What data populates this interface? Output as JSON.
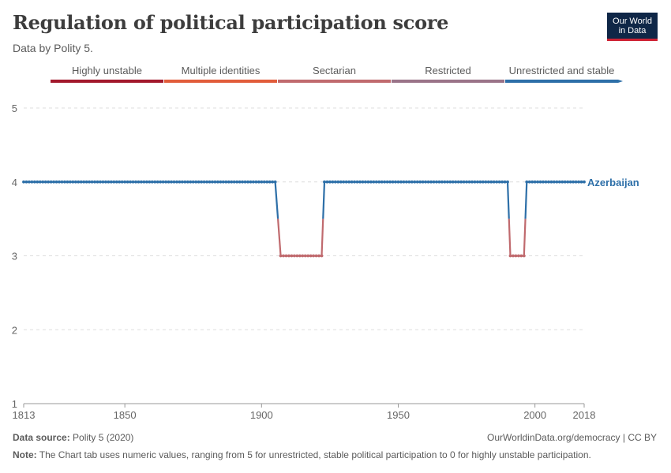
{
  "header": {
    "title": "Regulation of political participation score",
    "subtitle": "Data by Polity 5."
  },
  "logo": {
    "line1": "Our World",
    "line2": "in Data"
  },
  "footer": {
    "source_label": "Data source:",
    "source_text": "Polity 5 (2020)",
    "url_text": "OurWorldinData.org/democracy | CC BY",
    "note_label": "Note:",
    "note_text": "The Chart tab uses numeric values, ranging from 5 for unrestricted, stable political participation to 0 for highly unstable participation."
  },
  "colors": {
    "highly_unstable": "#a2182c",
    "multiple_identities": "#e15c3a",
    "sectarian": "#c06a6e",
    "restricted": "#9a7388",
    "unrestricted_and_stable": "#2d6fa8",
    "series": "#2d6fa8",
    "grid": "#dddddd"
  },
  "chart_data": {
    "type": "line",
    "title": "Regulation of political participation score",
    "subtitle": "Data by Polity 5.",
    "xlabel": "",
    "ylabel": "",
    "xlim": [
      1813,
      2018
    ],
    "ylim": [
      1,
      5
    ],
    "x_ticks": [
      1813,
      1850,
      1900,
      1950,
      2000,
      2018
    ],
    "y_ticks": [
      1,
      2,
      3,
      4,
      5
    ],
    "grid": "horizontal dashed",
    "legend": {
      "placement": "top",
      "entries": [
        "Highly unstable",
        "Multiple identities",
        "Sectarian",
        "Restricted",
        "Unrestricted and stable"
      ]
    },
    "series": [
      {
        "name": "Azerbaijan",
        "color": "#2d6fa8",
        "segments": [
          {
            "x": [
              1813,
              1905
            ],
            "y": 4
          },
          {
            "x": [
              1907,
              1922
            ],
            "y": 3
          },
          {
            "x": [
              1923,
              1990
            ],
            "y": 4
          },
          {
            "x": [
              1991,
              1996
            ],
            "y": 3
          },
          {
            "x": [
              1997,
              2018
            ],
            "y": 4
          }
        ]
      }
    ]
  }
}
